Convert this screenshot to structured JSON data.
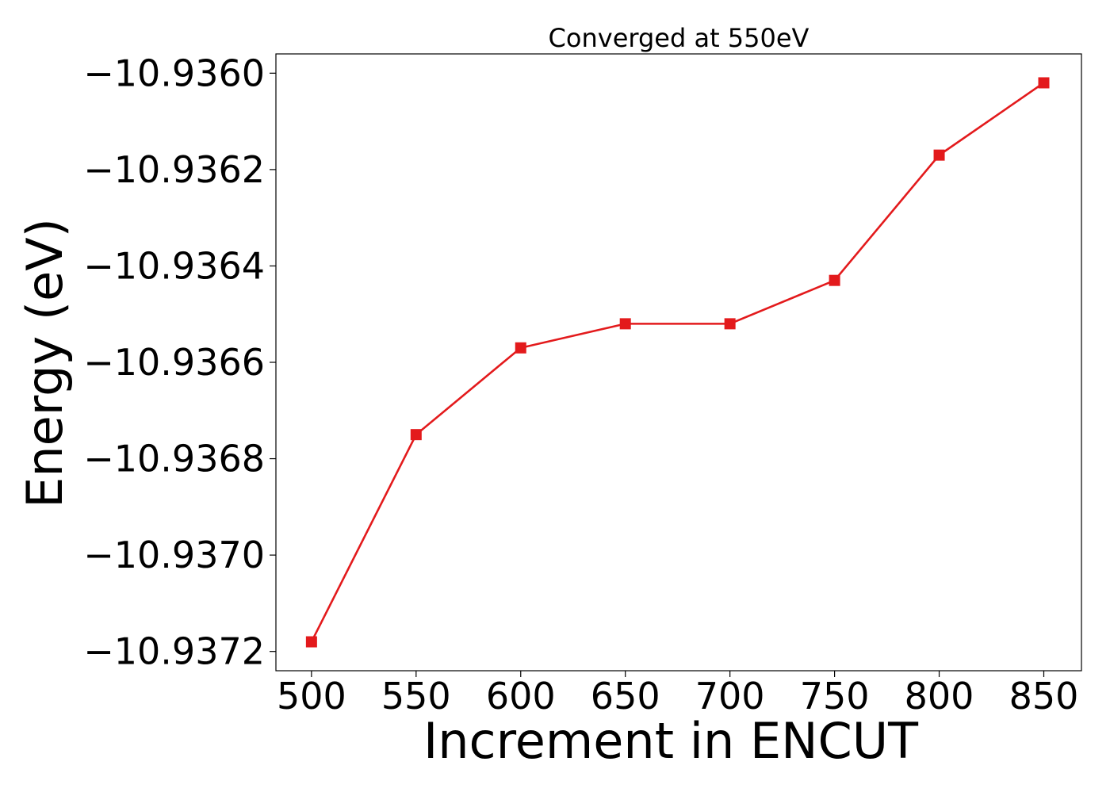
{
  "chart_data": {
    "type": "line",
    "title": "Converged at 550eV",
    "xlabel": "Increment in ENCUT",
    "ylabel": "Energy (eV)",
    "x": [
      500,
      550,
      600,
      650,
      700,
      750,
      800,
      850
    ],
    "series": [
      {
        "values": [
          -10.93718,
          -10.93675,
          -10.93657,
          -10.93652,
          -10.93652,
          -10.93643,
          -10.93617,
          -10.93602
        ],
        "color": "#e31a1c",
        "marker": "square"
      }
    ],
    "x_ticks": [
      "500",
      "550",
      "600",
      "650",
      "700",
      "750",
      "800",
      "850"
    ],
    "y_ticks": [
      "−10.9372",
      "−10.9370",
      "−10.9368",
      "−10.9366",
      "−10.9364",
      "−10.9362",
      "−10.9360"
    ],
    "y_tick_values": [
      -10.9372,
      -10.937,
      -10.9368,
      -10.9366,
      -10.9364,
      -10.9362,
      -10.936
    ],
    "xlim": [
      483,
      868
    ],
    "ylim": [
      -10.93724,
      -10.93596
    ],
    "grid": false,
    "legend": "none"
  }
}
